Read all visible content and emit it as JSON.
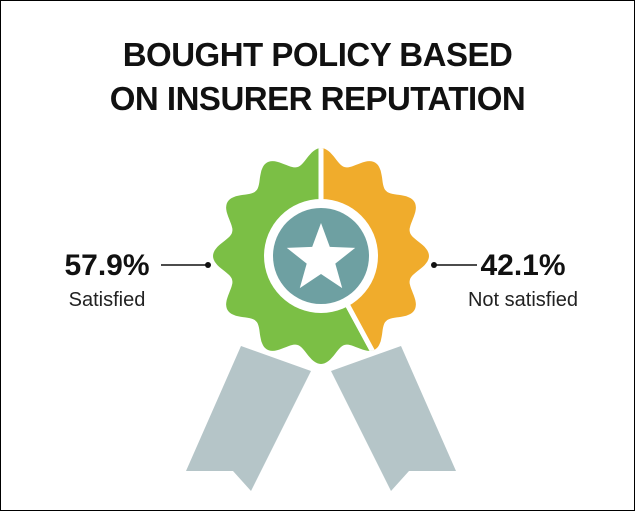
{
  "chart_data": {
    "type": "pie",
    "title": "BOUGHT POLICY BASED\nON INSURER REPUTATION",
    "categories": [
      "Satisfied",
      "Not satisfied"
    ],
    "values": [
      57.9,
      42.1
    ],
    "value_labels": [
      "57.9%",
      "42.1%"
    ],
    "colors": [
      "#7bbf45",
      "#f0ac2c"
    ]
  }
}
